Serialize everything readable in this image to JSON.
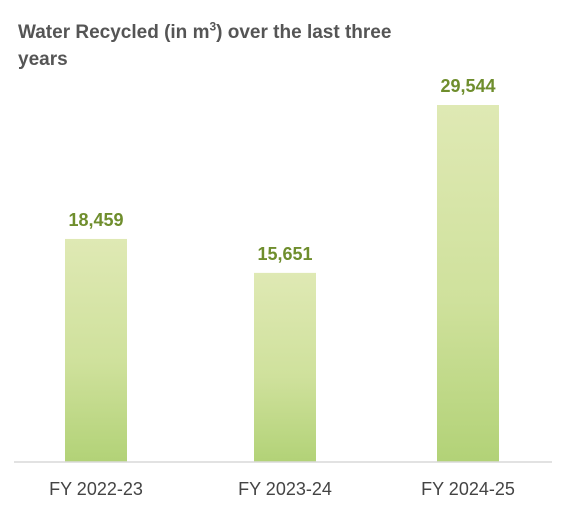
{
  "chart_data": {
    "type": "bar",
    "title_prefix": "Water Recycled (in m",
    "title_superscript": "3",
    "title_suffix": ") over the last three years",
    "categories": [
      "FY 2022-23",
      "FY 2023-24",
      "FY 2024-25"
    ],
    "values": [
      18459,
      15651,
      29544
    ],
    "value_labels": [
      "18,459",
      "15,651",
      "29,544"
    ],
    "ylim": [
      0,
      29544
    ],
    "grid": false,
    "legend": "none",
    "colors": {
      "bar_light": "#d8e6a8",
      "bar_mid": "#c6dc8e",
      "bar_dark": "#a9cc6a",
      "value_label": "#6f8e2d",
      "axis": "#d9d9d9",
      "tick_label": "#444444",
      "title": "#555555"
    }
  }
}
